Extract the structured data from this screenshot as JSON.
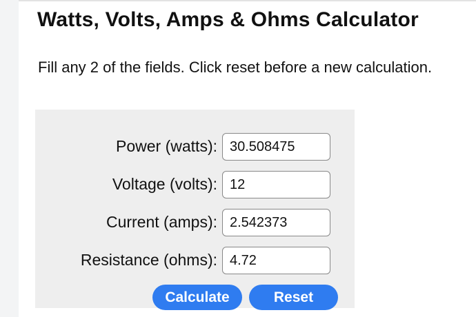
{
  "title": "Watts, Volts, Amps & Ohms Calculator",
  "instructions": "Fill any 2 of the fields. Click reset before a new calculation.",
  "fields": [
    {
      "label": "Power (watts):",
      "value": "30.508475"
    },
    {
      "label": "Voltage (volts):",
      "value": "12"
    },
    {
      "label": "Current (amps):",
      "value": "2.542373"
    },
    {
      "label": "Resistance (ohms):",
      "value": "4.72"
    }
  ],
  "buttons": {
    "calculate": "Calculate",
    "reset": "Reset"
  },
  "colors": {
    "button": "#2f7cf0",
    "panel": "#eeeeee"
  }
}
